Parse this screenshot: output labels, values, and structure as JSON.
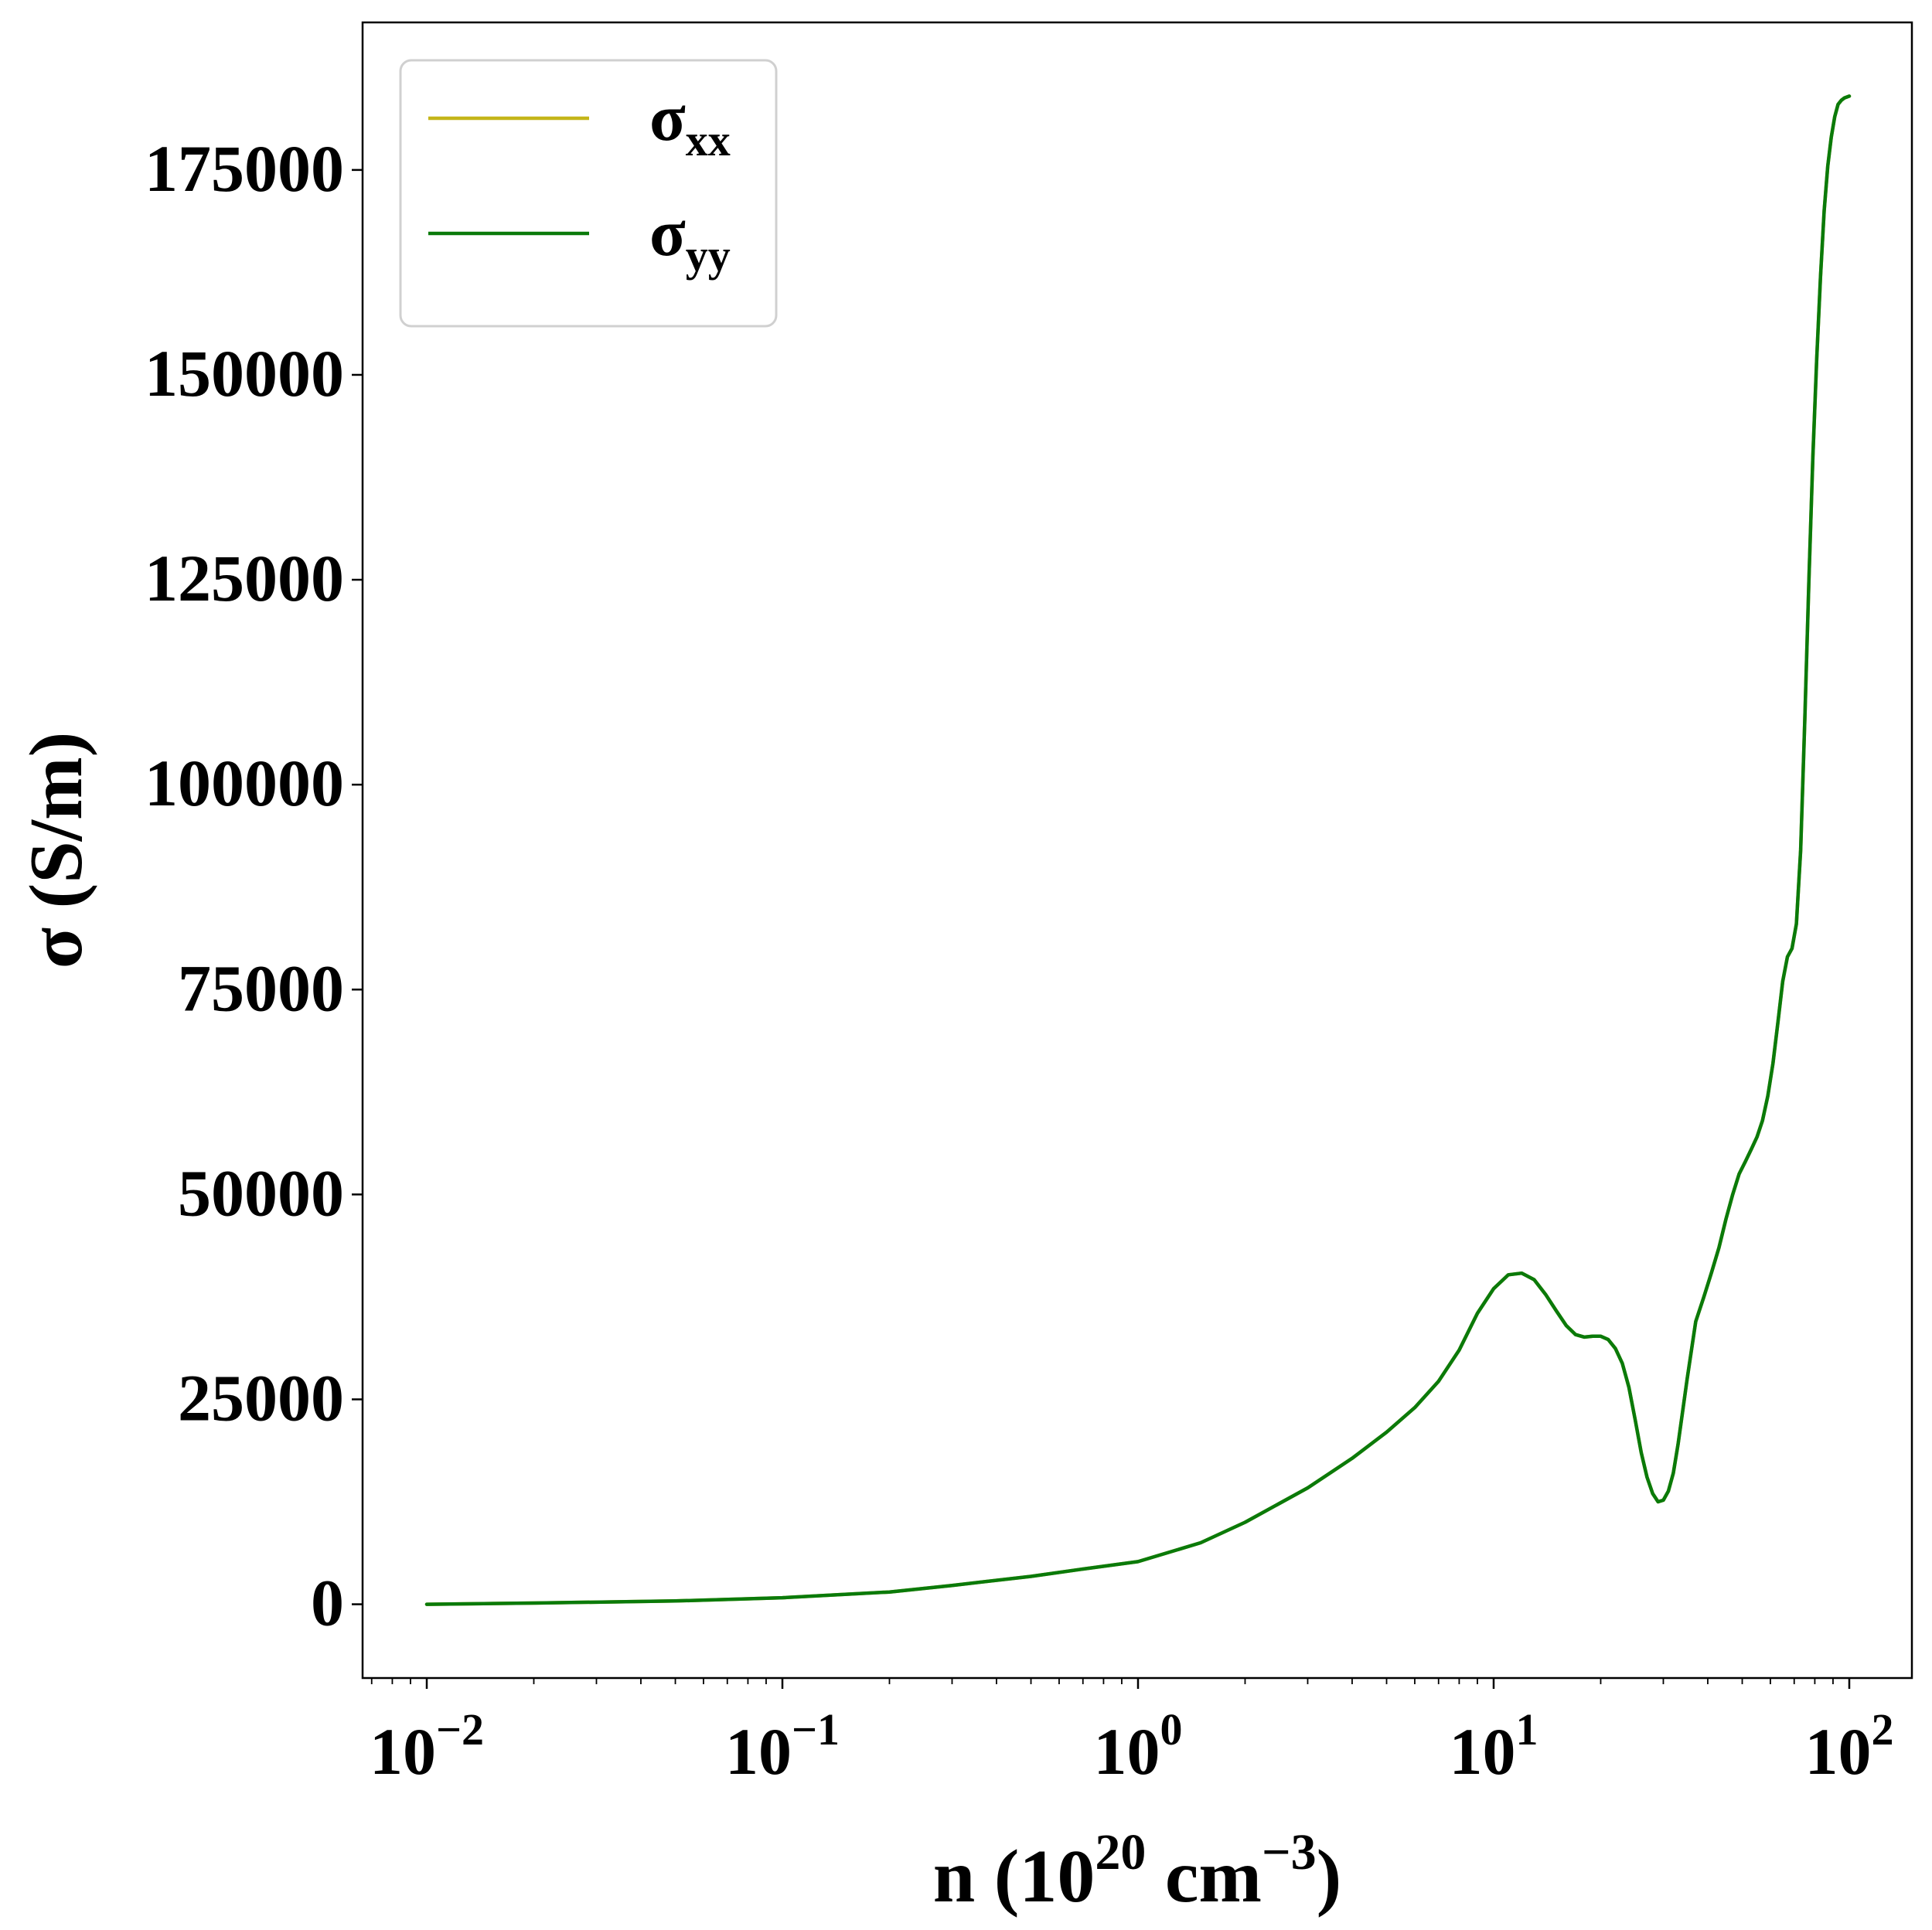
{
  "chart_data": {
    "type": "line",
    "title": "",
    "xlabel": {
      "main": "n (10",
      "sup1": "20",
      "mid": " cm",
      "sup2": "−3",
      "end": ")"
    },
    "ylabel": "σ (S/m)",
    "xscale": "log",
    "xlim": [
      0.0066,
      150
    ],
    "ylim": [
      -9000,
      193000
    ],
    "x_ticks": [
      {
        "value": 0.01,
        "base": "10",
        "exp": "−2"
      },
      {
        "value": 0.1,
        "base": "10",
        "exp": "−1"
      },
      {
        "value": 1,
        "base": "10",
        "exp": "0"
      },
      {
        "value": 10,
        "base": "10",
        "exp": "1"
      },
      {
        "value": 100,
        "base": "10",
        "exp": "2"
      }
    ],
    "y_ticks": [
      {
        "value": 0,
        "label": "0"
      },
      {
        "value": 25000,
        "label": "25000"
      },
      {
        "value": 50000,
        "label": "50000"
      },
      {
        "value": 75000,
        "label": "75000"
      },
      {
        "value": 100000,
        "label": "100000"
      },
      {
        "value": 125000,
        "label": "125000"
      },
      {
        "value": 150000,
        "label": "150000"
      },
      {
        "value": 175000,
        "label": "175000"
      }
    ],
    "grid": false,
    "legend": {
      "placement": "top-left",
      "entries": [
        {
          "symbol": "σ",
          "sub": "xx",
          "color": "#c4b519"
        },
        {
          "symbol": "σ",
          "sub": "yy",
          "color": "#0a7a0a"
        }
      ]
    },
    "series": [
      {
        "color": "#c4b519",
        "x": [
          0.01,
          0.02,
          0.05,
          0.1,
          0.2,
          0.3,
          0.5,
          0.7,
          1.0,
          1.5,
          2.0,
          3.0,
          4.0,
          5.0,
          6.0,
          7.0,
          8.0,
          9.0,
          10.0,
          11.0,
          12.0,
          13.0,
          14.0,
          15.0,
          16.0,
          17.0,
          18.0,
          19.0,
          20.0,
          21.0,
          22.0,
          23.0,
          24.0,
          25.0,
          26.0,
          27.0,
          28.0,
          29.0,
          30.0,
          31.0,
          32.0,
          33.0,
          35.0,
          37.0,
          39.0,
          41.0,
          43.0,
          45.0,
          47.0,
          49.0,
          51.0,
          53.0,
          55.0,
          57.0,
          59.0,
          61.0,
          63.0,
          65.0,
          67.0,
          69.0,
          71.0,
          73.0,
          75.0,
          77.0,
          79.0,
          81.0,
          83.0,
          85.0,
          87.0,
          89.0,
          91.0,
          93.0,
          95.0,
          97.0,
          100.0
        ],
        "y": [
          0,
          150,
          400,
          800,
          1500,
          2300,
          3400,
          4300,
          5200,
          7500,
          10000,
          14200,
          17800,
          21000,
          24000,
          27200,
          31000,
          35500,
          38500,
          40200,
          40400,
          39600,
          37800,
          35800,
          34000,
          32900,
          32600,
          32700,
          32700,
          32300,
          31200,
          29400,
          26500,
          22500,
          18500,
          15500,
          13500,
          12500,
          12700,
          13800,
          16000,
          19500,
          27500,
          34500,
          37500,
          40500,
          43500,
          47000,
          50000,
          52500,
          54000,
          55500,
          57000,
          59000,
          62000,
          66000,
          71000,
          76000,
          79000,
          80000,
          83000,
          92000,
          108000,
          125000,
          140000,
          152000,
          162000,
          170000,
          175500,
          179000,
          181500,
          183000,
          183500,
          183800,
          184000
        ]
      },
      {
        "color": "#0a7a0a",
        "x": [
          0.01,
          0.02,
          0.05,
          0.1,
          0.2,
          0.3,
          0.5,
          0.7,
          1.0,
          1.5,
          2.0,
          3.0,
          4.0,
          5.0,
          6.0,
          7.0,
          8.0,
          9.0,
          10.0,
          11.0,
          12.0,
          13.0,
          14.0,
          15.0,
          16.0,
          17.0,
          18.0,
          19.0,
          20.0,
          21.0,
          22.0,
          23.0,
          24.0,
          25.0,
          26.0,
          27.0,
          28.0,
          29.0,
          30.0,
          31.0,
          32.0,
          33.0,
          35.0,
          37.0,
          39.0,
          41.0,
          43.0,
          45.0,
          47.0,
          49.0,
          51.0,
          53.0,
          55.0,
          57.0,
          59.0,
          61.0,
          63.0,
          65.0,
          67.0,
          69.0,
          71.0,
          73.0,
          75.0,
          77.0,
          79.0,
          81.0,
          83.0,
          85.0,
          87.0,
          89.0,
          91.0,
          93.0,
          95.0,
          97.0,
          100.0
        ],
        "y": [
          0,
          150,
          400,
          800,
          1500,
          2300,
          3400,
          4300,
          5200,
          7500,
          10000,
          14200,
          17800,
          21000,
          24000,
          27200,
          31000,
          35500,
          38500,
          40200,
          40400,
          39600,
          37800,
          35800,
          34000,
          32900,
          32600,
          32700,
          32700,
          32300,
          31200,
          29400,
          26500,
          22500,
          18500,
          15500,
          13500,
          12500,
          12700,
          13800,
          16000,
          19500,
          27500,
          34500,
          37500,
          40500,
          43500,
          47000,
          50000,
          52500,
          54000,
          55500,
          57000,
          59000,
          62000,
          66000,
          71000,
          76000,
          79000,
          80000,
          83000,
          92000,
          108000,
          125000,
          140000,
          152000,
          162000,
          170000,
          175500,
          179000,
          181500,
          183000,
          183500,
          183800,
          184000
        ]
      }
    ]
  }
}
